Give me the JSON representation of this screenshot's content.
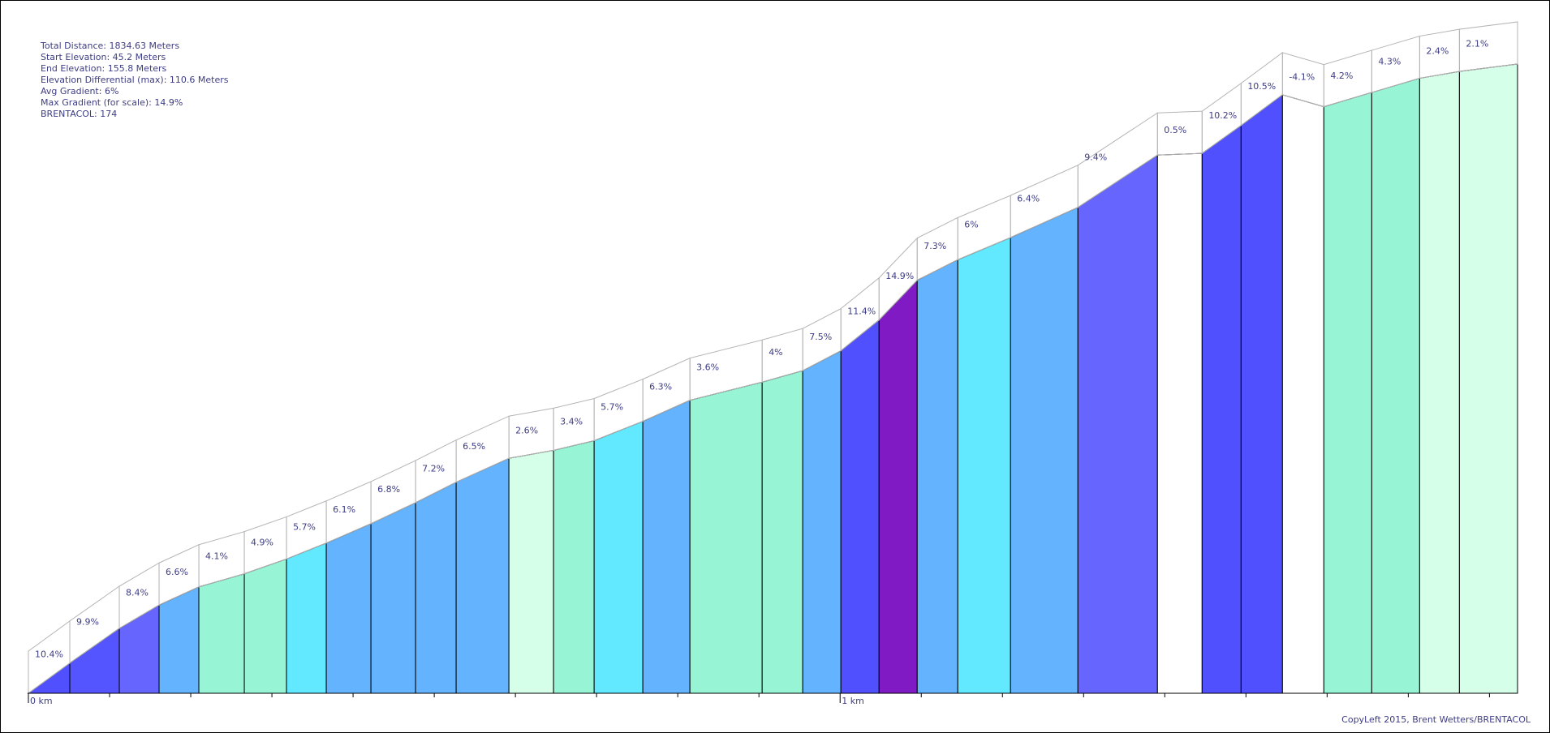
{
  "stats": {
    "total_distance": "Total Distance: 1834.63 Meters",
    "start_elevation": "Start Elevation: 45.2 Meters",
    "end_elevation": "End Elevation: 155.8 Meters",
    "elevation_differential": "Elevation Differential (max): 110.6 Meters",
    "avg_gradient": "Avg Gradient: 6%",
    "max_gradient": "Max Gradient (for scale): 14.9%",
    "brentacol": "BRENTACOL: 174"
  },
  "copyright": "CopyLeft 2015, Brent Wetters/BRENTACOL",
  "chart_data": {
    "type": "area",
    "x_unit": "km",
    "y_unit": "m",
    "xlim": [
      0,
      1.8346
    ],
    "ylim": [
      45.2,
      155.8
    ],
    "x_ticks": [
      {
        "value": 0,
        "label": "0 km"
      },
      {
        "value": 1,
        "label": "1 km"
      }
    ],
    "segments": [
      {
        "start": 0.0,
        "end": 0.051,
        "gradient": "10.4%",
        "color": "#5050ff"
      },
      {
        "start": 0.051,
        "end": 0.112,
        "gradient": "9.9%",
        "color": "#5555ff"
      },
      {
        "start": 0.112,
        "end": 0.161,
        "gradient": "8.4%",
        "color": "#6666ff"
      },
      {
        "start": 0.161,
        "end": 0.21,
        "gradient": "6.6%",
        "color": "#63b3ff"
      },
      {
        "start": 0.21,
        "end": 0.266,
        "gradient": "4.1%",
        "color": "#97f5d5"
      },
      {
        "start": 0.266,
        "end": 0.318,
        "gradient": "4.9%",
        "color": "#97f5d5"
      },
      {
        "start": 0.318,
        "end": 0.367,
        "gradient": "5.7%",
        "color": "#63e9ff"
      },
      {
        "start": 0.367,
        "end": 0.422,
        "gradient": "6.1%",
        "color": "#63b3ff"
      },
      {
        "start": 0.422,
        "end": 0.477,
        "gradient": "6.8%",
        "color": "#63b3ff"
      },
      {
        "start": 0.477,
        "end": 0.527,
        "gradient": "7.2%",
        "color": "#63b3ff"
      },
      {
        "start": 0.527,
        "end": 0.592,
        "gradient": "6.5%",
        "color": "#63b3ff"
      },
      {
        "start": 0.592,
        "end": 0.647,
        "gradient": "2.6%",
        "color": "#d5ffe8"
      },
      {
        "start": 0.647,
        "end": 0.697,
        "gradient": "3.4%",
        "color": "#97f5d5"
      },
      {
        "start": 0.697,
        "end": 0.757,
        "gradient": "5.7%",
        "color": "#63e9ff"
      },
      {
        "start": 0.757,
        "end": 0.815,
        "gradient": "6.3%",
        "color": "#63b3ff"
      },
      {
        "start": 0.815,
        "end": 0.904,
        "gradient": "3.6%",
        "color": "#97f5d5"
      },
      {
        "start": 0.904,
        "end": 0.954,
        "gradient": "4%",
        "color": "#97f5d5"
      },
      {
        "start": 0.954,
        "end": 1.001,
        "gradient": "7.5%",
        "color": "#63b3ff"
      },
      {
        "start": 1.001,
        "end": 1.048,
        "gradient": "11.4%",
        "color": "#5050ff"
      },
      {
        "start": 1.048,
        "end": 1.095,
        "gradient": "14.9%",
        "color": "#7f1ac4"
      },
      {
        "start": 1.095,
        "end": 1.145,
        "gradient": "7.3%",
        "color": "#63b3ff"
      },
      {
        "start": 1.145,
        "end": 1.21,
        "gradient": "6%",
        "color": "#63e9ff"
      },
      {
        "start": 1.21,
        "end": 1.293,
        "gradient": "6.4%",
        "color": "#63b3ff"
      },
      {
        "start": 1.293,
        "end": 1.391,
        "gradient": "9.4%",
        "color": "#6666ff"
      },
      {
        "start": 1.391,
        "end": 1.446,
        "gradient": "0.5%",
        "color": "#ffffff"
      },
      {
        "start": 1.446,
        "end": 1.494,
        "gradient": "10.2%",
        "color": "#5050ff"
      },
      {
        "start": 1.494,
        "end": 1.545,
        "gradient": "10.5%",
        "color": "#5050ff"
      },
      {
        "start": 1.545,
        "end": 1.596,
        "gradient": "-4.1%",
        "color": "#ffffff"
      },
      {
        "start": 1.596,
        "end": 1.655,
        "gradient": "4.2%",
        "color": "#97f5d5"
      },
      {
        "start": 1.655,
        "end": 1.714,
        "gradient": "4.3%",
        "color": "#97f5d5"
      },
      {
        "start": 1.714,
        "end": 1.763,
        "gradient": "2.4%",
        "color": "#d5ffe8"
      },
      {
        "start": 1.763,
        "end": 1.8346,
        "gradient": "2.1%",
        "color": "#d5ffe8"
      }
    ],
    "elevations": [
      45.2,
      50.5,
      56.6,
      60.7,
      63.9,
      66.2,
      68.8,
      71.6,
      75.0,
      78.7,
      82.3,
      86.5,
      87.9,
      89.6,
      93.0,
      96.7,
      99.9,
      101.9,
      105.4,
      110.8,
      117.8,
      121.4,
      125.3,
      130.6,
      139.8,
      140.1,
      145.0,
      150.4,
      148.3,
      150.8,
      153.3,
      154.5,
      155.8
    ]
  }
}
